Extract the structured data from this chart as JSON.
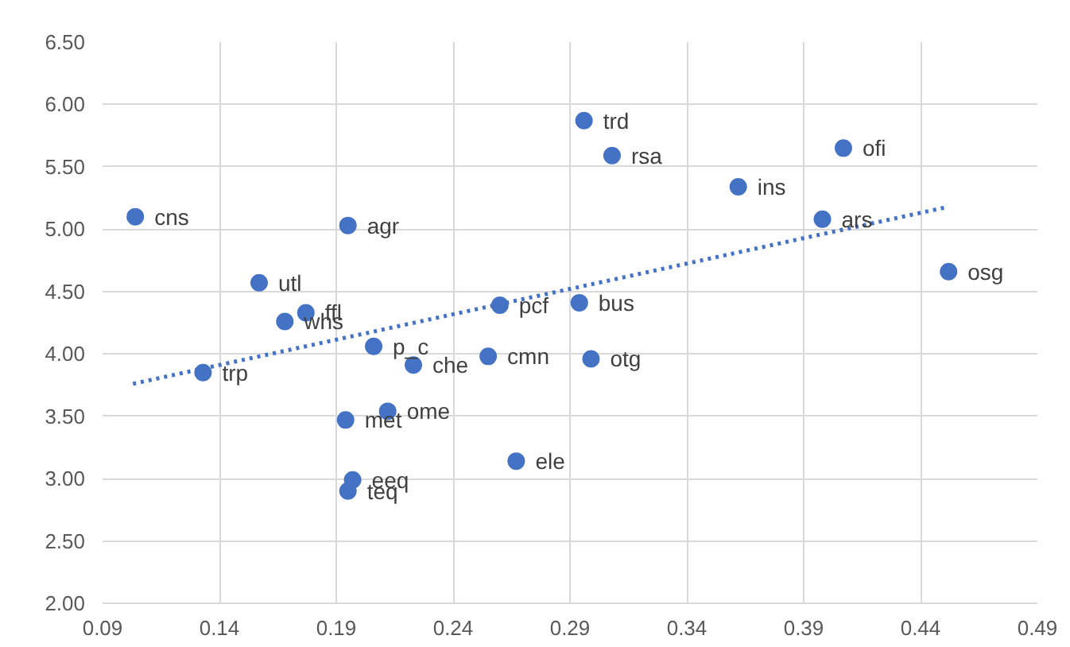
{
  "chart_data": {
    "type": "scatter",
    "x": [
      0.104,
      0.195,
      0.157,
      0.177,
      0.168,
      0.133,
      0.206,
      0.223,
      0.255,
      0.26,
      0.194,
      0.212,
      0.197,
      0.195,
      0.267,
      0.296,
      0.308,
      0.362,
      0.407,
      0.398,
      0.452,
      0.294,
      0.299
    ],
    "series": [
      {
        "color": "#4472c4",
        "marker": "circle",
        "values": [
          5.1,
          5.03,
          4.57,
          4.33,
          4.26,
          3.85,
          4.06,
          3.91,
          3.98,
          4.39,
          3.47,
          3.54,
          2.99,
          2.9,
          3.14,
          5.87,
          5.59,
          5.34,
          5.65,
          5.08,
          4.66,
          4.41,
          3.96
        ]
      },
      {
        "type": "line",
        "color": "#4472c4",
        "line_style": "dotted",
        "marker": "none",
        "x": [
          0.103,
          0.452
        ],
        "values": [
          3.76,
          5.18
        ]
      }
    ],
    "annotations": [
      {
        "text": "cns",
        "x": 0.104,
        "y": 5.1
      },
      {
        "text": "agr",
        "x": 0.195,
        "y": 5.03
      },
      {
        "text": "utl",
        "x": 0.157,
        "y": 4.57
      },
      {
        "text": "ffl",
        "x": 0.177,
        "y": 4.33
      },
      {
        "text": "whs",
        "x": 0.168,
        "y": 4.26
      },
      {
        "text": "trp",
        "x": 0.133,
        "y": 3.85
      },
      {
        "text": "p_c",
        "x": 0.206,
        "y": 4.06
      },
      {
        "text": "che",
        "x": 0.223,
        "y": 3.91
      },
      {
        "text": "cmn",
        "x": 0.255,
        "y": 3.98
      },
      {
        "text": "pcf",
        "x": 0.26,
        "y": 4.39
      },
      {
        "text": "met",
        "x": 0.194,
        "y": 3.47
      },
      {
        "text": "ome",
        "x": 0.212,
        "y": 3.54
      },
      {
        "text": "eeq",
        "x": 0.197,
        "y": 2.99
      },
      {
        "text": "teq",
        "x": 0.195,
        "y": 2.9
      },
      {
        "text": "ele",
        "x": 0.267,
        "y": 3.14
      },
      {
        "text": "trd",
        "x": 0.296,
        "y": 5.87
      },
      {
        "text": "rsa",
        "x": 0.308,
        "y": 5.59
      },
      {
        "text": "ins",
        "x": 0.362,
        "y": 5.34
      },
      {
        "text": "ofi",
        "x": 0.407,
        "y": 5.65
      },
      {
        "text": "ars",
        "x": 0.398,
        "y": 5.08
      },
      {
        "text": "osg",
        "x": 0.452,
        "y": 4.66
      },
      {
        "text": "bus",
        "x": 0.294,
        "y": 4.41
      },
      {
        "text": "otg",
        "x": 0.299,
        "y": 3.96
      }
    ],
    "xlim": [
      0.09,
      0.49
    ],
    "xticks": [
      0.09,
      0.14,
      0.19,
      0.24,
      0.29,
      0.34,
      0.39,
      0.44,
      0.49
    ],
    "ylim": [
      2.0,
      6.5
    ],
    "yticks": [
      {
        "value": 2.0,
        "label": "2.00"
      },
      {
        "value": 2.5,
        "label": "2.50"
      },
      {
        "value": 3.0,
        "label": "3.00"
      },
      {
        "value": 3.5,
        "label": "3.50"
      },
      {
        "value": 4.0,
        "label": "4.00"
      },
      {
        "value": 4.5,
        "label": "4.50"
      },
      {
        "value": 5.0,
        "label": "5.00"
      },
      {
        "value": 5.5,
        "label": "5.50"
      },
      {
        "value": 6.0,
        "label": "6.00"
      },
      {
        "value": 6.5,
        "label": "6.50"
      }
    ],
    "grid": true
  }
}
